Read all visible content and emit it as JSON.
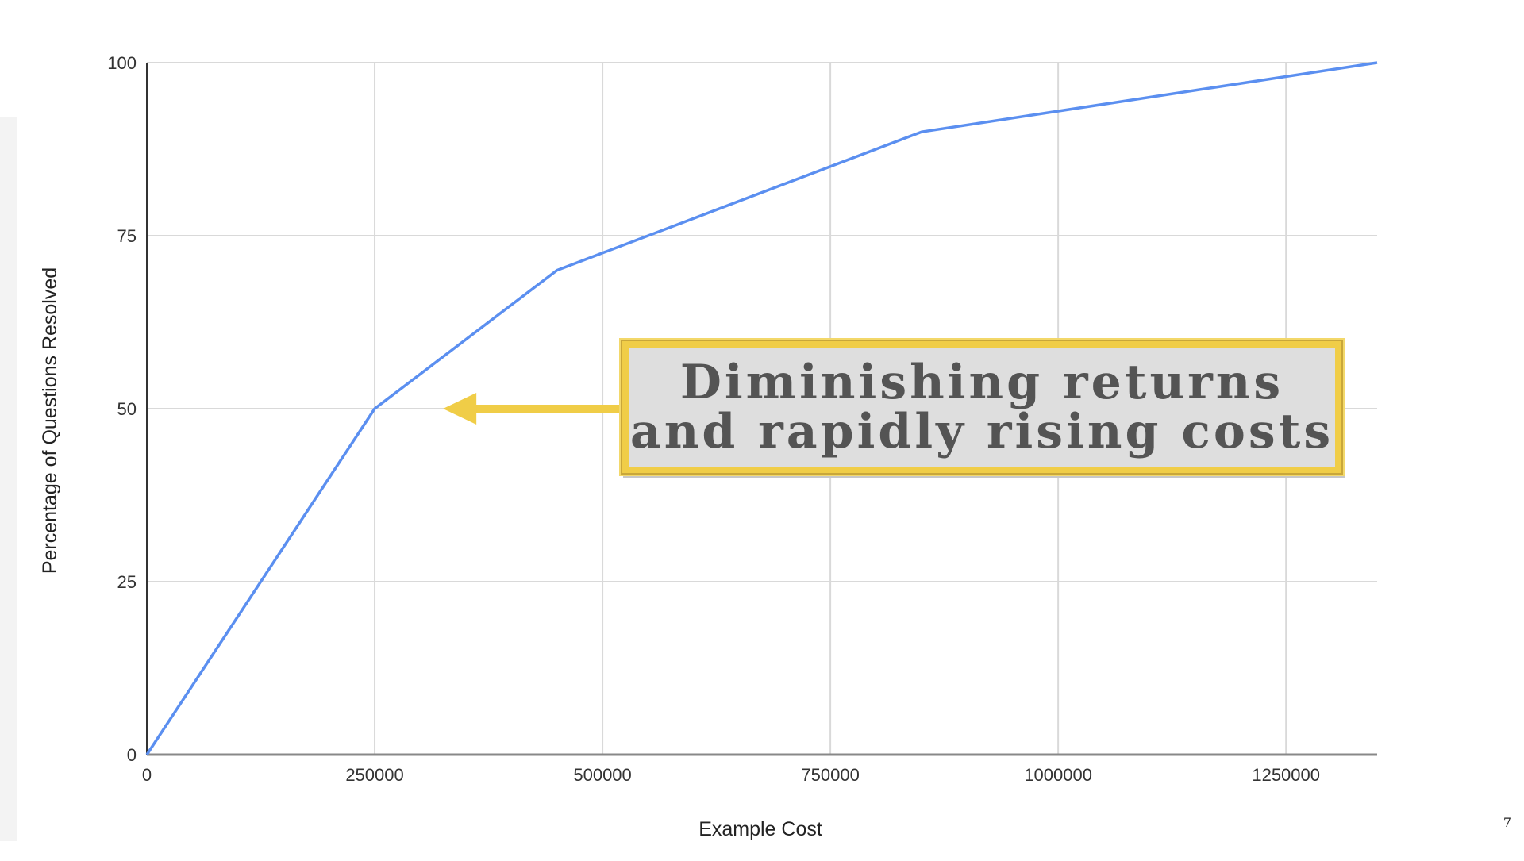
{
  "chart_data": {
    "type": "line",
    "xlabel": "Example Cost",
    "ylabel": "Percentage of Questions Resolved",
    "xlim": [
      0,
      1350000
    ],
    "ylim": [
      0,
      100
    ],
    "x_ticks": [
      0,
      250000,
      500000,
      750000,
      1000000,
      1250000
    ],
    "y_ticks": [
      0,
      25,
      50,
      75,
      100
    ],
    "x_tick_labels": [
      "0",
      "250000",
      "500000",
      "750000",
      "1000000",
      "1250000"
    ],
    "y_tick_labels": [
      "0",
      "25",
      "50",
      "75",
      "100"
    ],
    "grid": true,
    "series": [
      {
        "color": "#5b8ff0",
        "x": [
          0,
          250000,
          450000,
          850000,
          1350000
        ],
        "y": [
          0,
          50,
          70,
          90,
          100
        ]
      }
    ]
  },
  "annotation": {
    "lines": [
      "Diminishing returns",
      "and rapidly rising costs"
    ],
    "arrow_color": "#f0cd47",
    "border_color": "#f0cd47",
    "fill_color": "#dedede",
    "points_to": {
      "x": 325000,
      "y": 50
    }
  },
  "page_number": "7"
}
